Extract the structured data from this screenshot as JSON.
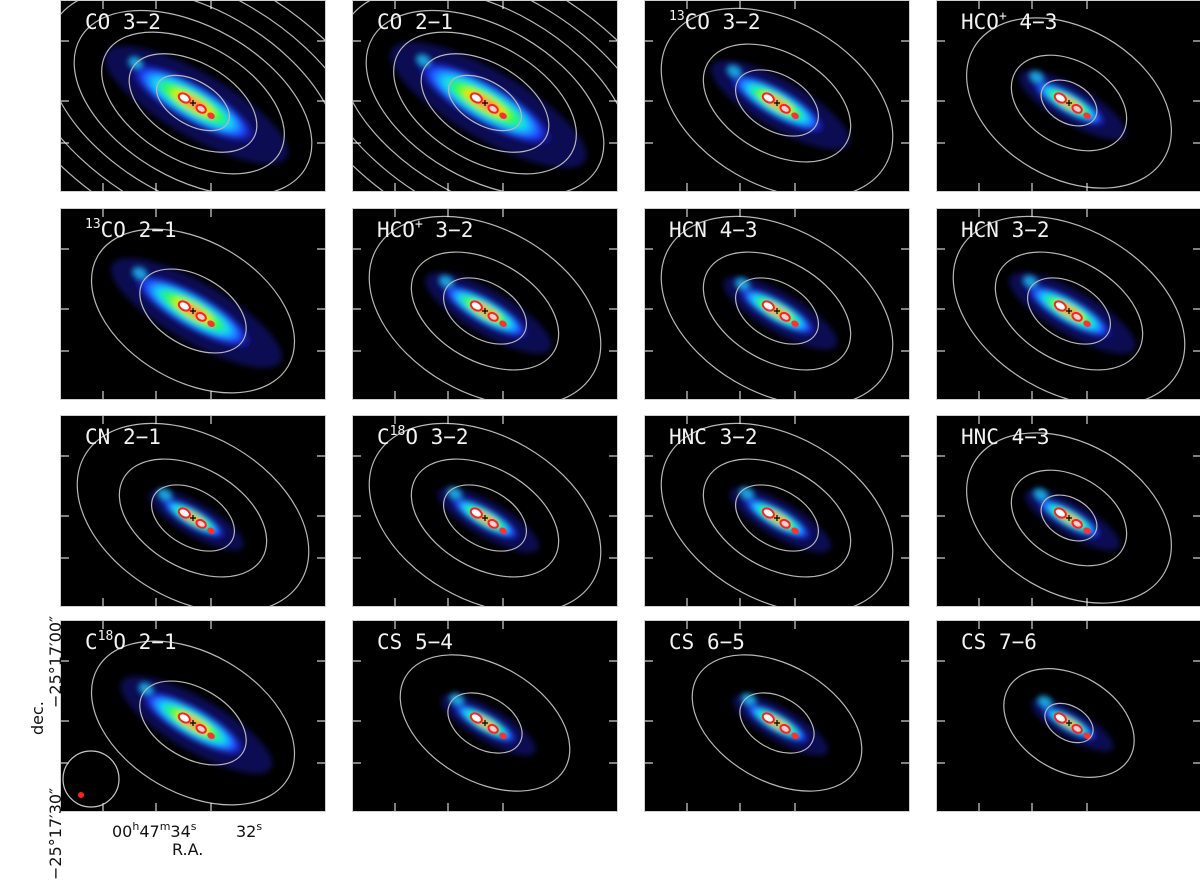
{
  "figure": {
    "panels": [
      {
        "label_pre": "",
        "sup1": "",
        "mid": "CO",
        "sup2": "",
        "rest": " 3−2"
      },
      {
        "label_pre": "",
        "sup1": "",
        "mid": "CO",
        "sup2": "",
        "rest": " 2−1"
      },
      {
        "label_pre": "",
        "sup1": "13",
        "mid": "CO",
        "sup2": "",
        "rest": " 3−2"
      },
      {
        "label_pre": "",
        "sup1": "",
        "mid": "HCO",
        "sup2": "+",
        "rest": " 4−3"
      },
      {
        "label_pre": "",
        "sup1": "13",
        "mid": "CO",
        "sup2": "",
        "rest": " 2−1"
      },
      {
        "label_pre": "",
        "sup1": "",
        "mid": "HCO",
        "sup2": "+",
        "rest": " 3−2"
      },
      {
        "label_pre": "",
        "sup1": "",
        "mid": "HCN",
        "sup2": "",
        "rest": " 4−3"
      },
      {
        "label_pre": "",
        "sup1": "",
        "mid": "HCN",
        "sup2": "",
        "rest": " 3−2"
      },
      {
        "label_pre": "",
        "sup1": "",
        "mid": "CN",
        "sup2": "",
        "rest": " 2−1"
      },
      {
        "label_pre": "C",
        "sup1": "18",
        "mid": "O",
        "sup2": "",
        "rest": " 3−2"
      },
      {
        "label_pre": "",
        "sup1": "",
        "mid": "HNC",
        "sup2": "",
        "rest": " 3−2"
      },
      {
        "label_pre": "",
        "sup1": "",
        "mid": "HNC",
        "sup2": "",
        "rest": " 4−3"
      },
      {
        "label_pre": "C",
        "sup1": "18",
        "mid": "O",
        "sup2": "",
        "rest": " 2−1"
      },
      {
        "label_pre": "",
        "sup1": "",
        "mid": "CS",
        "sup2": "",
        "rest": " 5−4"
      },
      {
        "label_pre": "",
        "sup1": "",
        "mid": "CS",
        "sup2": "",
        "rest": " 6−5"
      },
      {
        "label_pre": "",
        "sup1": "",
        "mid": "CS",
        "sup2": "",
        "rest": " 7−6"
      }
    ],
    "axes": {
      "y_label": "dec.",
      "y_tick_low": "−25°17′30″",
      "y_tick_high": "−25°17′00″",
      "x_tick_1_a": "00",
      "x_tick_1_h": "h",
      "x_tick_1_b": "47",
      "x_tick_1_m": "m",
      "x_tick_1_c": "34",
      "x_tick_1_s": "s",
      "x_tick_2_a": "32",
      "x_tick_2_s": "s",
      "x_label": "R.A."
    },
    "colors": {
      "background": "#000000",
      "contour": "#b8b8b8",
      "beam_large": "#c8c8c8",
      "beam_small": "#ff2020"
    }
  }
}
